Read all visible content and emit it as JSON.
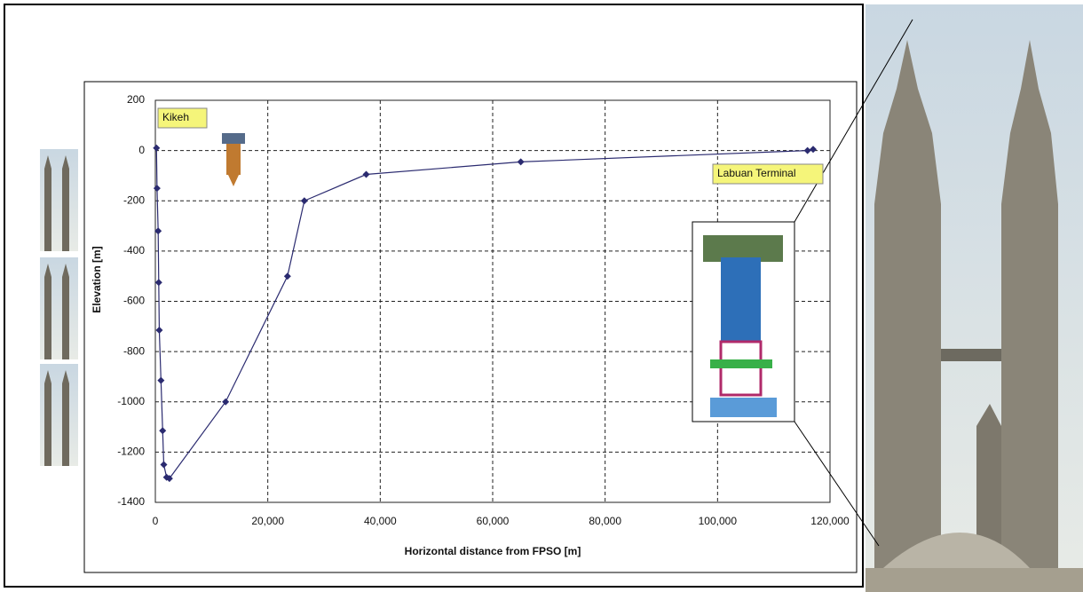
{
  "chart_data": {
    "type": "line",
    "x_label": "Horizontal distance from FPSO [m]",
    "y_label": "Elevation [m]",
    "annotations": [
      "Kikeh",
      "Labuan Terminal"
    ],
    "series": [
      {
        "color": "#2b2b70",
        "x": [
          200,
          300,
          500,
          600,
          700,
          1000,
          1300,
          1500,
          2000,
          2500,
          12500,
          23500,
          26500,
          37500,
          65000,
          116000,
          117000
        ],
        "values": [
          10,
          -150,
          -320,
          -525,
          -715,
          -915,
          -1115,
          -1250,
          -1300,
          -1305,
          -1000,
          -500,
          -200,
          -95,
          -45,
          0,
          5
        ]
      }
    ],
    "xlim": [
      0,
      120000
    ],
    "xticks": [
      0,
      {
        "value": 20000,
        "label": "20,000"
      },
      {
        "value": 40000,
        "label": "40,000"
      },
      {
        "value": 60000,
        "label": "60,000"
      },
      {
        "value": 80000,
        "label": "80,000"
      },
      {
        "value": 100000,
        "label": "100,000"
      },
      {
        "value": 120000,
        "label": "120,000"
      }
    ],
    "ylim": [
      -1400,
      200
    ],
    "yticks": [
      -1400,
      -1200,
      -1000,
      -800,
      -600,
      -400,
      -200,
      0,
      200
    ],
    "grid": true
  }
}
